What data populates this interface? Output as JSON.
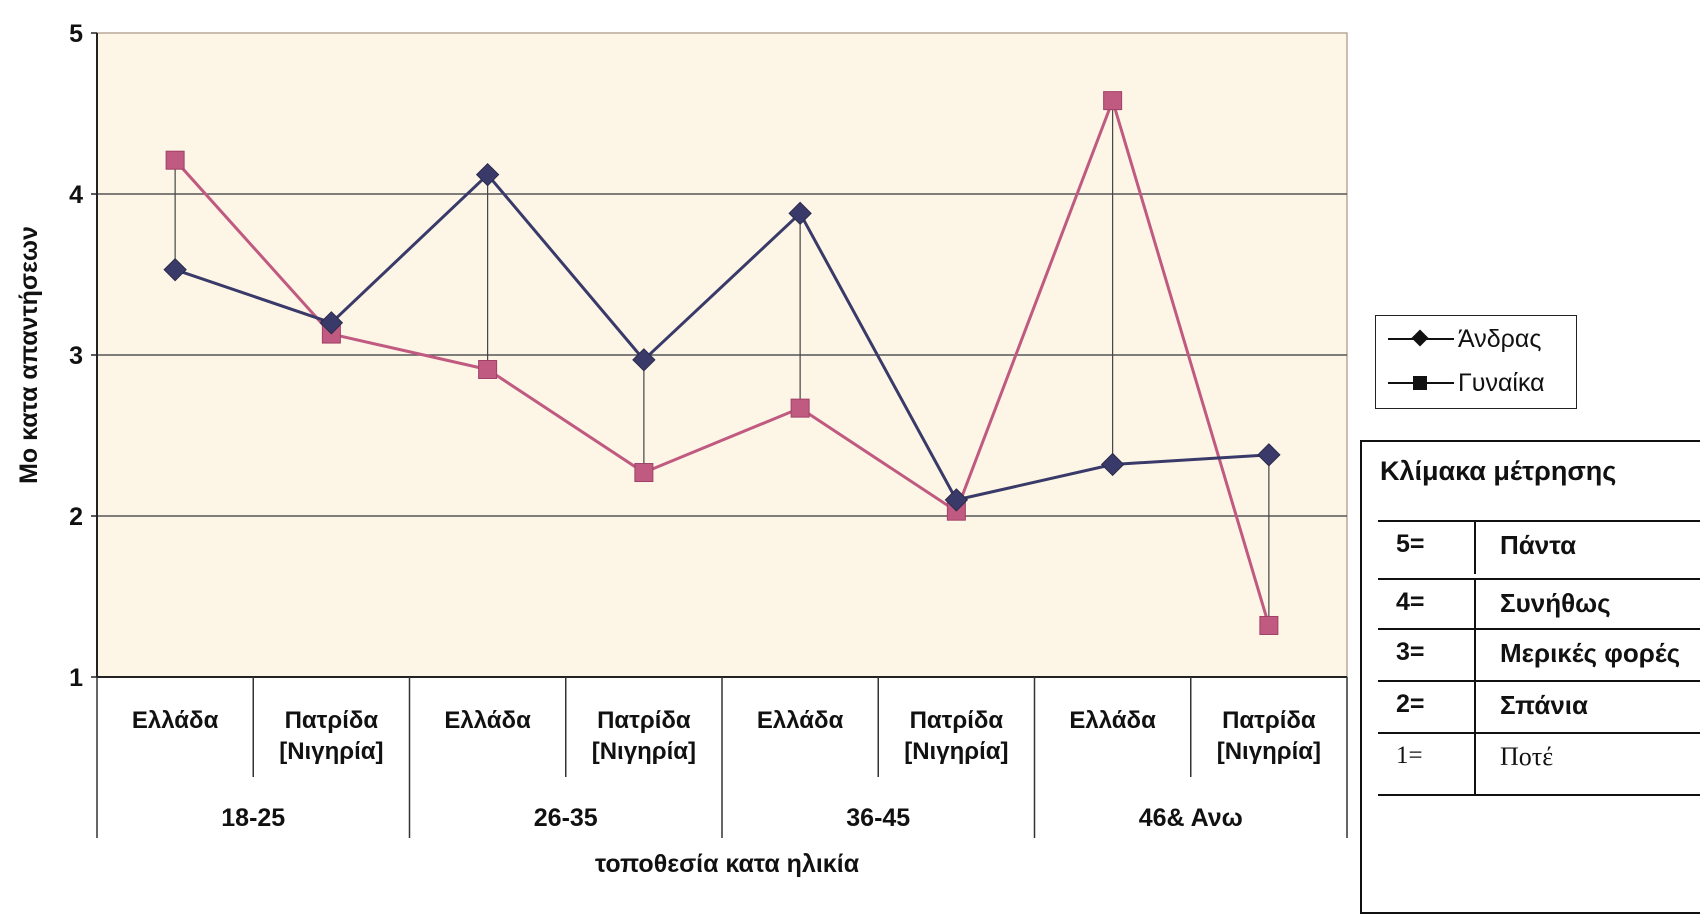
{
  "chart_data": {
    "type": "line",
    "title": "",
    "xlabel": "τοποθεσία κατα ηλικία",
    "ylabel": "Mo κατα απαντήσεων",
    "ylim": [
      1,
      5
    ],
    "yticks": [
      "1",
      "2",
      "3",
      "4",
      "5"
    ],
    "grid": true,
    "legend_placement": "right",
    "plot_background": "#fdf6e6",
    "categories": [
      "Ελλάδα",
      "Πατρίδα [Νιγηρία]",
      "Ελλάδα",
      "Πατρίδα [Νιγηρία]",
      "Ελλάδα",
      "Πατρίδα [Νιγηρία]",
      "Ελλάδα",
      "Πατρίδα [Νιγηρία]"
    ],
    "category_lines": [
      [
        "Ελλάδα"
      ],
      [
        "Πατρίδα",
        "[Νιγηρία]"
      ],
      [
        "Ελλάδα"
      ],
      [
        "Πατρίδα",
        "[Νιγηρία]"
      ],
      [
        "Ελλάδα"
      ],
      [
        "Πατρίδα",
        "[Νιγηρία]"
      ],
      [
        "Ελλάδα"
      ],
      [
        "Πατρίδα",
        "[Νιγηρία]"
      ]
    ],
    "groups": [
      "18-25",
      "26-35",
      "36-45",
      "46& Ανω"
    ],
    "series": [
      {
        "name": "Άνδρας",
        "marker": "diamond",
        "color": "#3a3a6a",
        "values": [
          3.53,
          3.2,
          4.12,
          2.97,
          3.88,
          2.1,
          2.32,
          2.38
        ]
      },
      {
        "name": "Γυναίκα",
        "marker": "square",
        "color": "#c05a80",
        "values": [
          4.21,
          3.13,
          2.91,
          2.27,
          2.67,
          2.03,
          4.58,
          1.32
        ]
      }
    ],
    "drop_lines": true
  },
  "scale": {
    "title": "Κλίμακα μέτρησης",
    "rows": [
      {
        "code": "5=",
        "label": "Πάντα"
      },
      {
        "code": "4=",
        "label": "Συνήθως"
      },
      {
        "code": "3=",
        "label": "Μερικές φορές"
      },
      {
        "code": "2=",
        "label": "Σπάνια"
      },
      {
        "code": "1=",
        "label": "Ποτέ"
      }
    ]
  }
}
